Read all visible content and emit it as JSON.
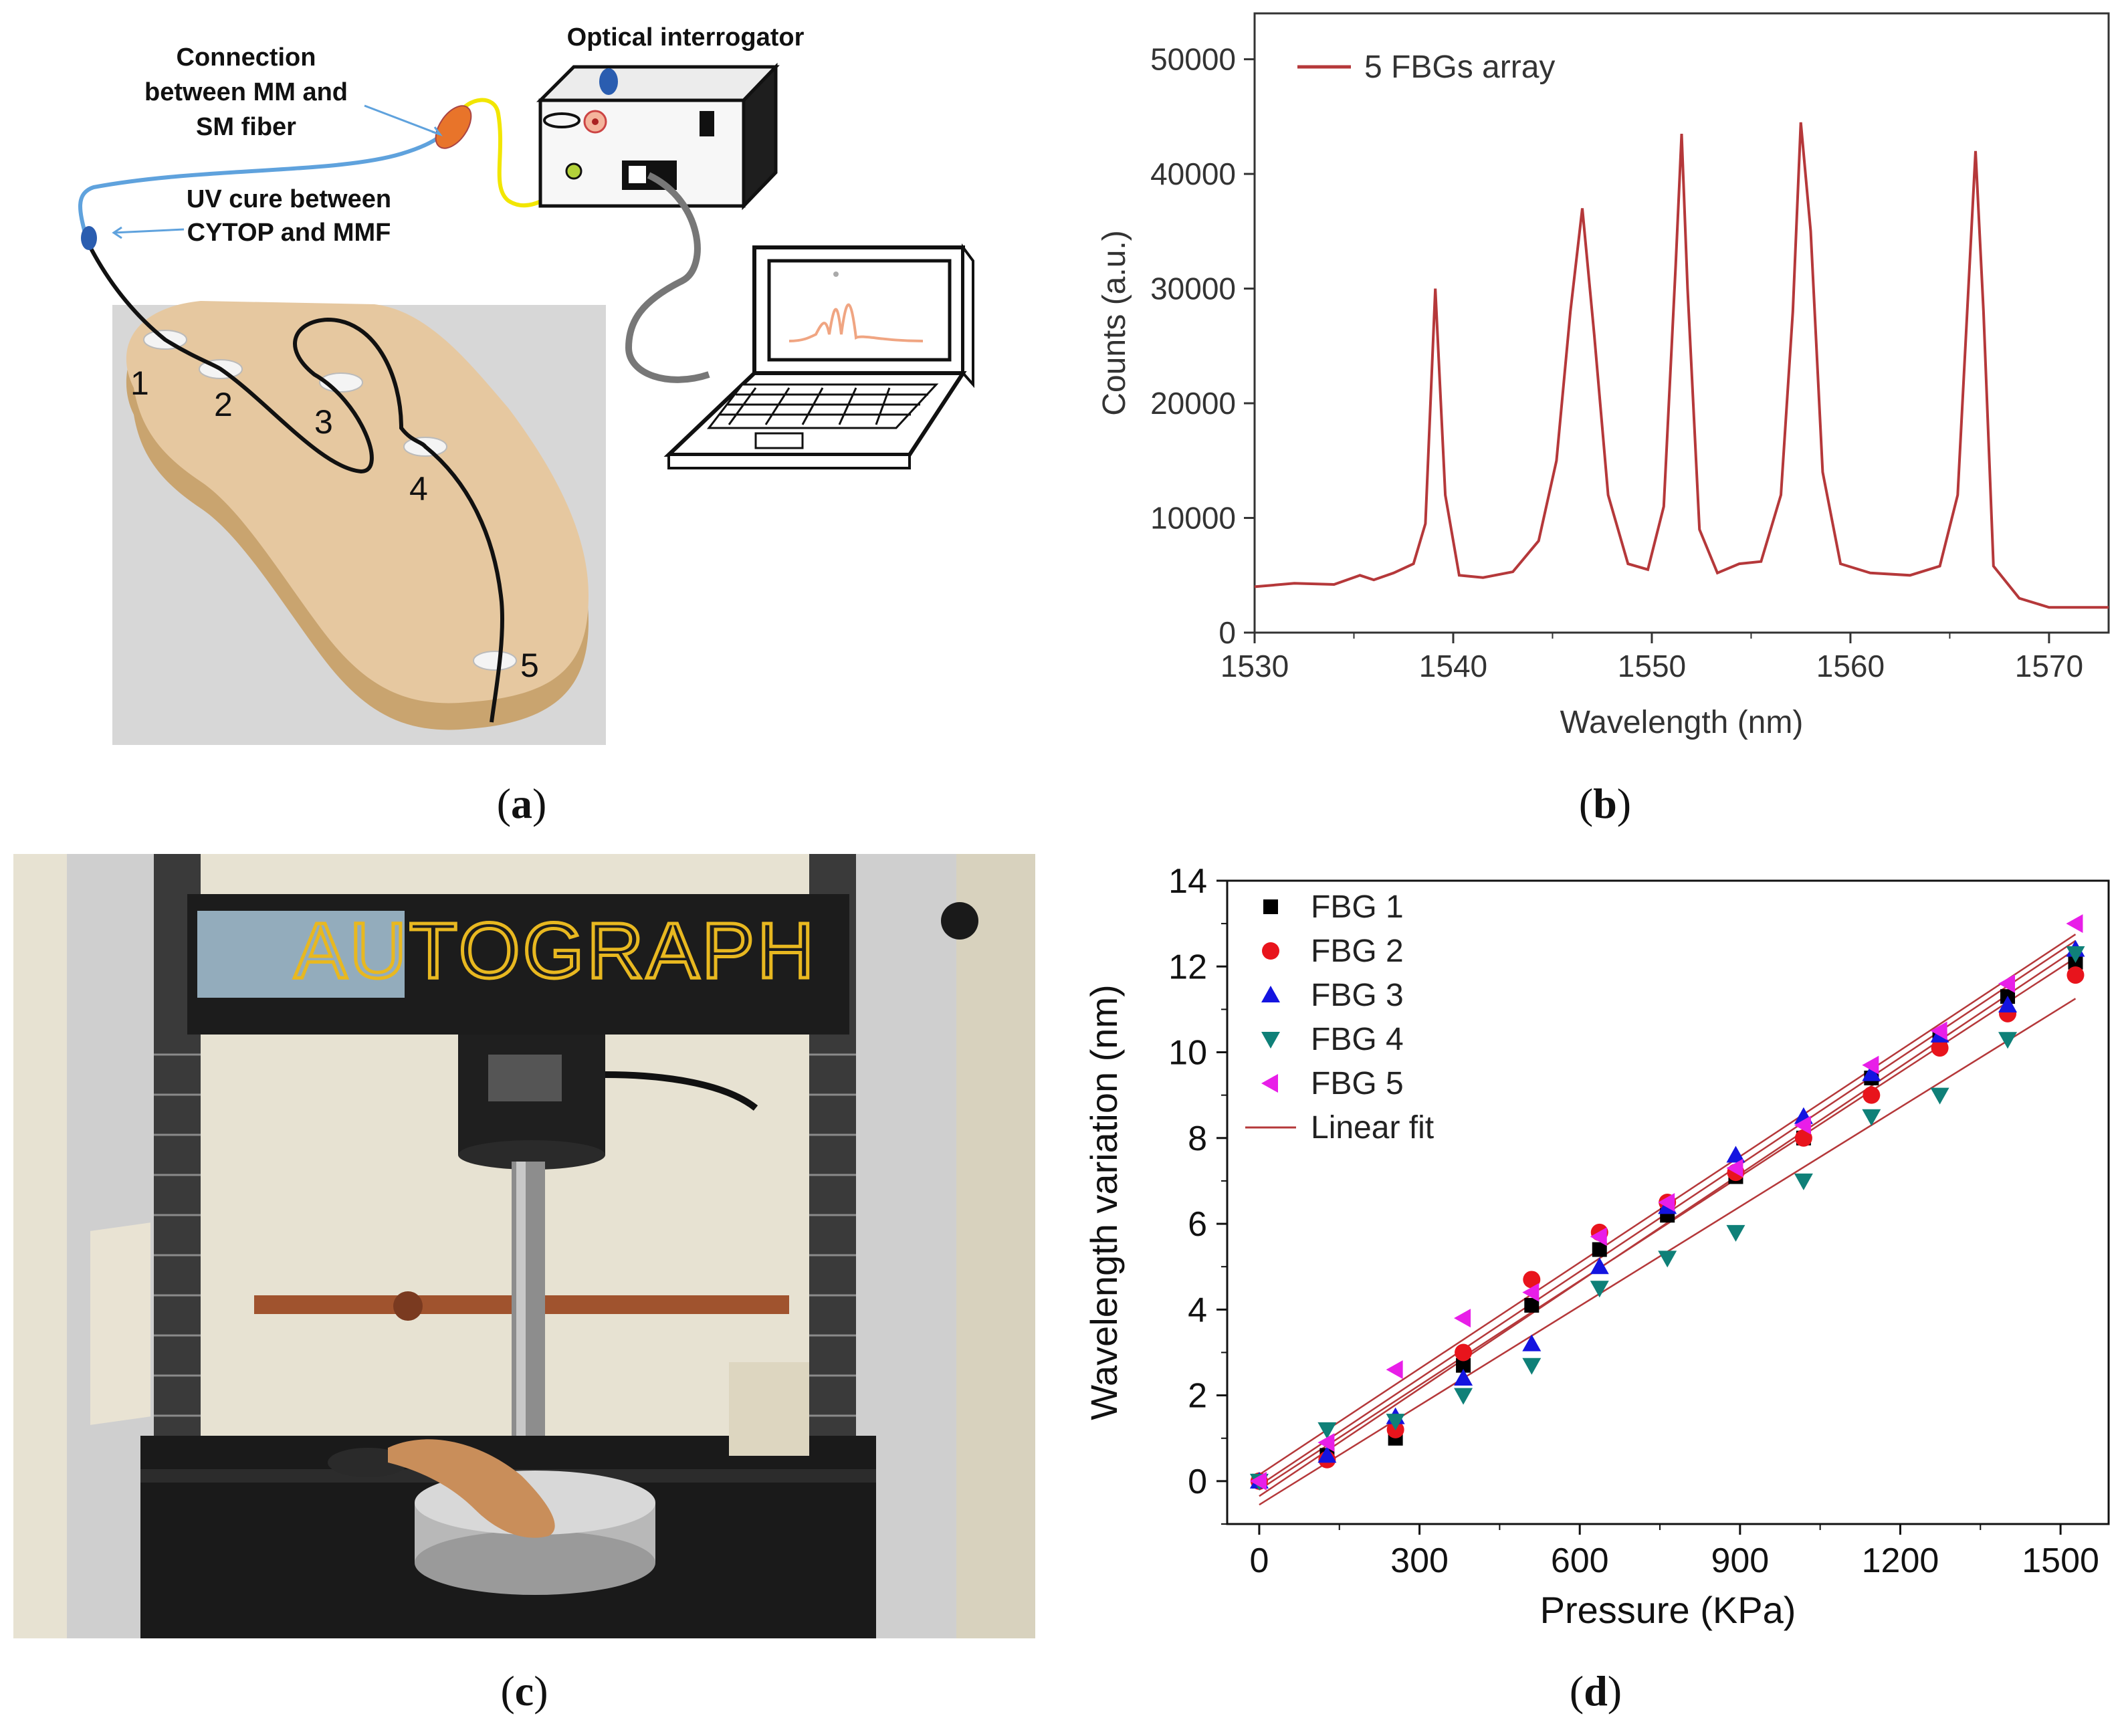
{
  "panel_a": {
    "labels": {
      "connection": [
        "Connection",
        "between MM and",
        "SM fiber"
      ],
      "uv_cure": [
        "UV cure between",
        "CYTOP and MMF"
      ],
      "interrogator": "Optical interrogator"
    },
    "sensor_numbers": [
      "1",
      "2",
      "3",
      "4",
      "5"
    ],
    "caption": "a"
  },
  "panel_b": {
    "caption": "b"
  },
  "panel_c": {
    "machine_label": "AUTOGRAPH",
    "caption": "c"
  },
  "panel_d": {
    "caption": "d"
  },
  "colors": {
    "spectrum": "#b5383a",
    "fbg1": "#000000",
    "fbg2": "#e8141c",
    "fbg3": "#1414e0",
    "fbg4": "#0f8078",
    "fbg5": "#e81ee8",
    "fit": "#b5383a",
    "insole": "#e6c8a0"
  },
  "chart_data": [
    {
      "type": "line",
      "xlabel": "Wavelength (nm)",
      "ylabel": "Counts (a.u.)",
      "xlim": [
        1530,
        1573
      ],
      "ylim": [
        0,
        54000
      ],
      "xticks": [
        1530,
        1540,
        1550,
        1560,
        1570
      ],
      "yticks": [
        0,
        10000,
        20000,
        30000,
        40000,
        50000
      ],
      "legend": "top-left",
      "series": [
        {
          "name": "5 FBGs array",
          "x": [
            1530,
            1532,
            1534,
            1535.3,
            1536,
            1537,
            1538,
            1538.6,
            1539.1,
            1539.6,
            1540.3,
            1541.5,
            1543,
            1544.3,
            1545.2,
            1545.9,
            1546.5,
            1547.1,
            1547.8,
            1548.8,
            1549.8,
            1550.6,
            1551.2,
            1551.5,
            1551.8,
            1552.4,
            1553.3,
            1554.4,
            1555.5,
            1556.5,
            1557.1,
            1557.5,
            1558,
            1558.6,
            1559.5,
            1561,
            1563,
            1564.5,
            1565.4,
            1566,
            1566.3,
            1566.7,
            1567.2,
            1568.5,
            1570,
            1573
          ],
          "y": [
            4000,
            4300,
            4200,
            5000,
            4600,
            5200,
            6000,
            9500,
            30000,
            12000,
            5000,
            4800,
            5300,
            8000,
            15000,
            28000,
            37000,
            26000,
            12000,
            6000,
            5500,
            11000,
            32000,
            43500,
            30000,
            9000,
            5200,
            6000,
            6200,
            12000,
            28000,
            44500,
            35000,
            14000,
            6000,
            5200,
            5000,
            5800,
            12000,
            32000,
            42000,
            28000,
            5800,
            3000,
            2200,
            2200
          ]
        }
      ]
    },
    {
      "type": "scatter",
      "xlabel": "Pressure (KPa)",
      "ylabel": "Wavelength variation (nm)",
      "xlim": [
        -60,
        1590
      ],
      "ylim": [
        -1,
        14
      ],
      "xticks": [
        0,
        300,
        600,
        900,
        1200,
        1500
      ],
      "yticks": [
        0,
        2,
        4,
        6,
        8,
        10,
        12,
        14
      ],
      "legend": "top-left",
      "x": [
        0,
        127,
        255,
        382,
        510,
        637,
        764,
        892,
        1019,
        1146,
        1274,
        1401,
        1528
      ],
      "series": [
        {
          "name": "FBG 1",
          "marker": "square",
          "values": [
            0,
            0.6,
            1.0,
            2.7,
            4.1,
            5.4,
            6.2,
            7.1,
            8.0,
            9.4,
            10.3,
            11.3,
            12.1
          ]
        },
        {
          "name": "FBG 2",
          "marker": "circle",
          "values": [
            0,
            0.5,
            1.2,
            3.0,
            4.7,
            5.8,
            6.5,
            7.2,
            8.0,
            9.0,
            10.1,
            10.9,
            11.8
          ]
        },
        {
          "name": "FBG 3",
          "marker": "triangle-up",
          "values": [
            0,
            0.6,
            1.5,
            2.4,
            3.2,
            5.0,
            6.4,
            7.6,
            8.5,
            9.5,
            10.4,
            11.1,
            12.4
          ]
        },
        {
          "name": "FBG 4",
          "marker": "triangle-down",
          "values": [
            0,
            1.2,
            1.4,
            2.0,
            2.7,
            4.5,
            5.2,
            5.8,
            7.0,
            8.5,
            9.0,
            10.3,
            12.3
          ]
        },
        {
          "name": "FBG 5",
          "marker": "triangle-left",
          "values": [
            0,
            0.9,
            2.6,
            3.8,
            4.4,
            5.7,
            6.5,
            7.3,
            8.3,
            9.7,
            10.5,
            11.6,
            13.0
          ]
        }
      ],
      "fits": [
        {
          "x0": 0,
          "y0": -0.1,
          "x1": 1528,
          "y1": 12.6
        },
        {
          "x0": 0,
          "y0": 0.15,
          "x1": 1528,
          "y1": 12.75
        },
        {
          "x0": 0,
          "y0": -0.35,
          "x1": 1528,
          "y1": 12.4
        },
        {
          "x0": 0,
          "y0": -0.55,
          "x1": 1528,
          "y1": 11.25
        },
        {
          "x0": 0,
          "y0": -0.2,
          "x1": 1528,
          "y1": 12.2
        }
      ],
      "fit_legend": "Linear fit"
    }
  ]
}
